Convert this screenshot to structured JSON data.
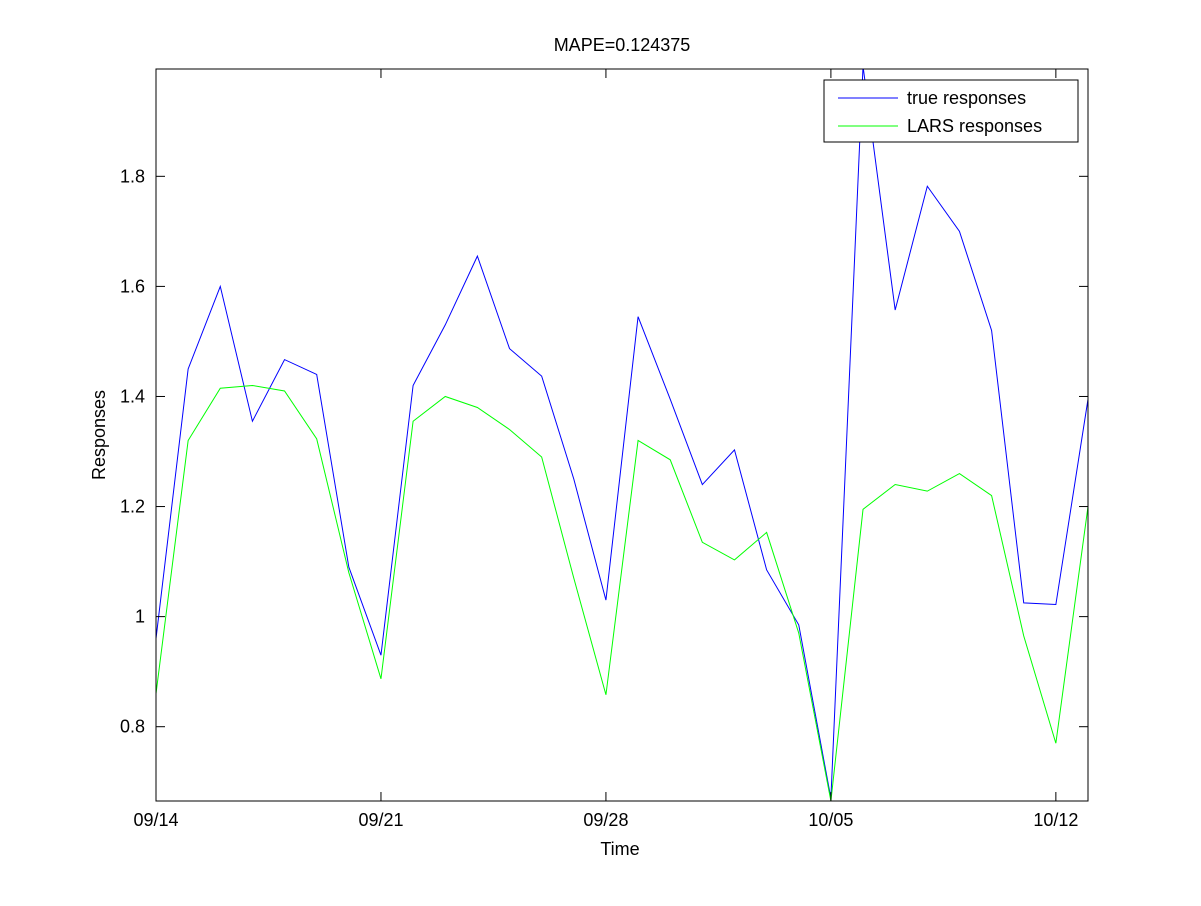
{
  "chart_data": {
    "type": "line",
    "title": "MAPE=0.124375",
    "xlabel": "Time",
    "ylabel": "Responses",
    "x": [
      "09/14",
      "09/15",
      "09/16",
      "09/17",
      "09/18",
      "09/19",
      "09/20",
      "09/21",
      "09/22",
      "09/23",
      "09/24",
      "09/25",
      "09/26",
      "09/27",
      "09/28",
      "09/29",
      "09/30",
      "10/01",
      "10/02",
      "10/03",
      "10/04",
      "10/05",
      "10/06",
      "10/07",
      "10/08",
      "10/09",
      "10/10",
      "10/11",
      "10/12",
      "10/13"
    ],
    "xlim": [
      "09/14",
      "10/13"
    ],
    "ylim": [
      0.665,
      1.995
    ],
    "xticks": [
      "09/14",
      "09/21",
      "09/28",
      "10/05",
      "10/12"
    ],
    "yticks": [
      "0.8",
      "1",
      "1.2",
      "1.4",
      "1.6",
      "1.8"
    ],
    "grid": false,
    "legend_position": "top-right",
    "series": [
      {
        "name": "true responses",
        "color": "#0000ff",
        "values": [
          0.96,
          1.45,
          1.6,
          1.355,
          1.467,
          1.44,
          1.09,
          0.93,
          1.42,
          1.53,
          1.655,
          1.487,
          1.437,
          1.25,
          1.03,
          1.545,
          1.395,
          1.24,
          1.303,
          1.085,
          0.985,
          0.67,
          2.0,
          1.557,
          1.782,
          1.7,
          1.52,
          1.025,
          1.022,
          1.395
        ]
      },
      {
        "name": "LARS responses",
        "color": "#00ff00",
        "values": [
          0.86,
          1.32,
          1.415,
          1.42,
          1.41,
          1.323,
          1.08,
          0.887,
          1.355,
          1.4,
          1.38,
          1.34,
          1.29,
          1.07,
          0.858,
          1.32,
          1.285,
          1.135,
          1.103,
          1.153,
          0.97,
          0.665,
          1.195,
          1.24,
          1.228,
          1.26,
          1.22,
          0.965,
          0.77,
          1.2
        ]
      }
    ]
  }
}
